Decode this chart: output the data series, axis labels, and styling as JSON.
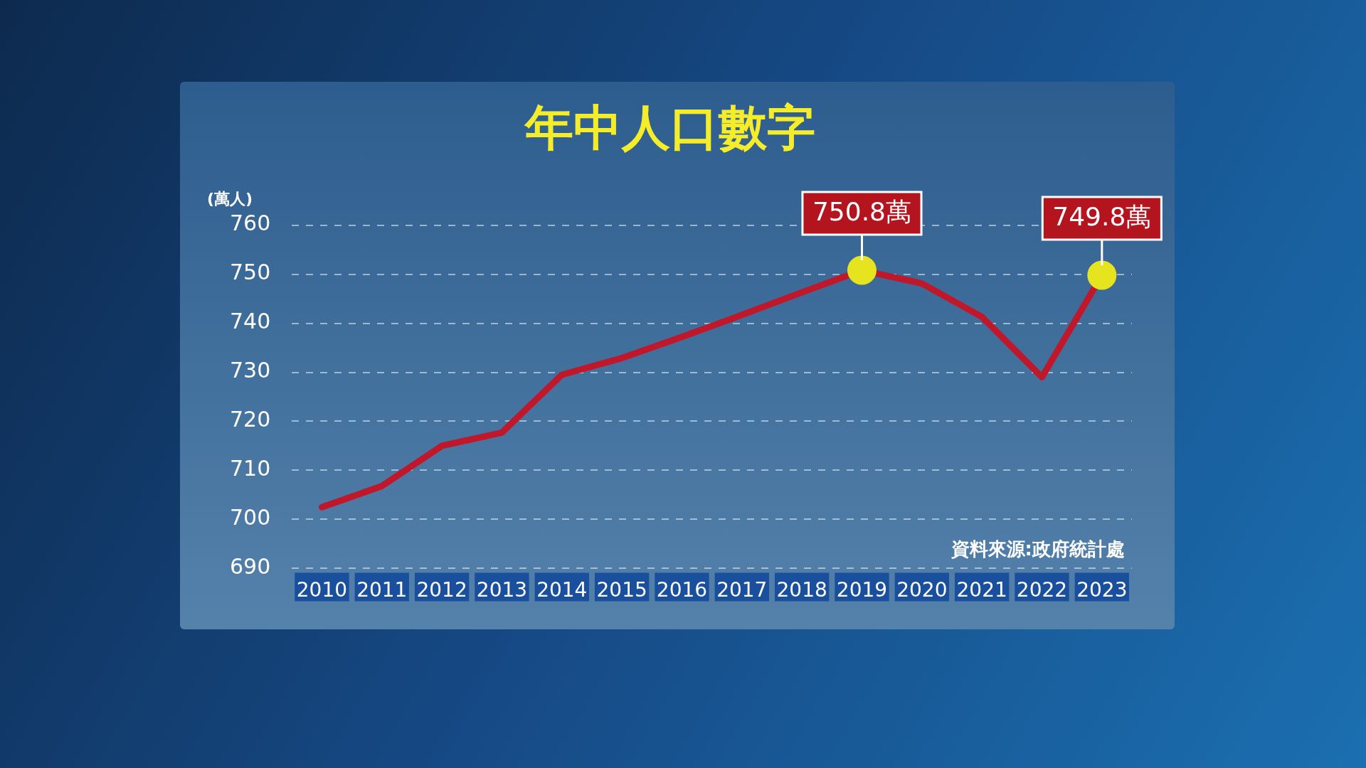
{
  "chart_data": {
    "type": "line",
    "title": "年中人口數字",
    "ylabel": "(萬人)",
    "categories": [
      "2010",
      "2011",
      "2012",
      "2013",
      "2014",
      "2015",
      "2016",
      "2017",
      "2018",
      "2019",
      "2020",
      "2021",
      "2022",
      "2023"
    ],
    "series": [
      {
        "color": "#c0182a",
        "values": [
          702.5,
          706.8,
          715.0,
          717.7,
          729.5,
          732.9,
          737.2,
          741.7,
          746.3,
          750.8,
          748.1,
          741.3,
          729.0,
          749.8
        ],
        "value_labels": [
          null,
          null,
          null,
          null,
          null,
          null,
          null,
          null,
          null,
          "750.8萬",
          null,
          null,
          null,
          "749.8萬"
        ]
      }
    ],
    "ylim": [
      690,
      760
    ],
    "yticks": [
      690,
      700,
      710,
      720,
      730,
      740,
      750,
      760
    ],
    "grid": "y",
    "legend": false,
    "annotations": [
      "資料來源:政府統計處"
    ]
  }
}
